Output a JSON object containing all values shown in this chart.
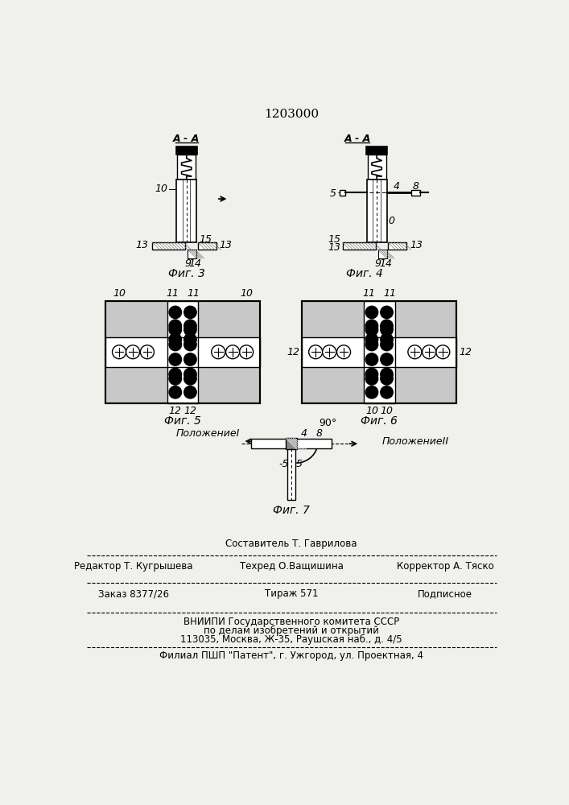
{
  "title": "1203000",
  "bg_color": "#f0f0ec",
  "fig3_label": "Фиг. 3",
  "fig4_label": "Фиг. 4",
  "fig5_label": "Фиг. 5",
  "fig6_label": "Фиг. 6",
  "fig7_label": "Фиг. 7",
  "section_label_3": "А - А",
  "section_label_4": "А - А",
  "footer_line1": "Составитель Т. Гаврилова",
  "footer_line2_left": "Редактор Т. Кугрышева",
  "footer_line2_mid": "Техред О.Ващишина",
  "footer_line2_right": "Корректор А. Тяско",
  "footer_line3_left": "Заказ 8377/26",
  "footer_line3_mid": "Тираж 571",
  "footer_line3_right": "Подписное",
  "footer_line4": "ВНИИПИ Государственного комитета СССР",
  "footer_line5": "по делам изобретений и открытий",
  "footer_line6": "113035, Москва, Ж-35, Раушская наб., д. 4/5",
  "footer_line7": "Филиал ПШП \"Патент\", г. Ужгород, ул. Проектная, 4",
  "положение1": "ПоложениеI",
  "положение2": "ПоложениеII",
  "angle_label": "90°"
}
